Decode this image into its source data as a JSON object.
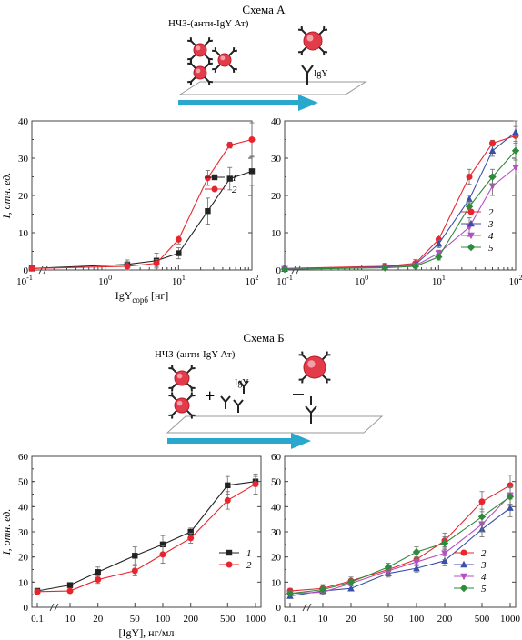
{
  "scheme_a": {
    "title": "Схема А",
    "np_label": "НЧЗ-(анти-IgY Ат)",
    "igy_label": "IgY"
  },
  "scheme_b": {
    "title": "Схема Б",
    "np_label": "НЧЗ-(анти-IgY Ат)",
    "igy_label": "IgY",
    "plus": "+"
  },
  "colors": {
    "1": "#222222",
    "2": "#e8252e",
    "3": "#3b4fa8",
    "4": "#b44fc0",
    "5": "#2e8b3a",
    "arrow": "#2aa7cc",
    "particle": "#e23b4a"
  },
  "chart_data": [
    {
      "id": "a_left",
      "type": "line",
      "xscale": "log",
      "xlim": [
        0.1,
        100
      ],
      "ylim": [
        0,
        40
      ],
      "xticks": [
        "10^0",
        "10^1",
        "10^2"
      ],
      "xtick_extra_left": "10^-1",
      "yticks": [
        "0",
        "10",
        "20",
        "30",
        "40"
      ],
      "ylabel": "I, отн. ед.",
      "xlabel": "IgYсорб [нг]",
      "legend_position": "right-middle",
      "series": [
        {
          "name": "1",
          "x": [
            0.1,
            2,
            5,
            10,
            25,
            50,
            100
          ],
          "y": [
            0.4,
            1.5,
            2.5,
            4.5,
            15.8,
            24.5,
            26.5
          ],
          "err": [
            0.5,
            1.2,
            2.0,
            1.5,
            3.5,
            3.0,
            3.8
          ]
        },
        {
          "name": "2",
          "x": [
            0.1,
            2,
            5,
            10,
            25,
            50,
            100
          ],
          "y": [
            0.4,
            1.0,
            1.8,
            8.2,
            24.7,
            33.5,
            35.0
          ],
          "err": [
            0.5,
            1.0,
            1.0,
            1.2,
            2.0,
            0.8,
            4.5
          ]
        }
      ]
    },
    {
      "id": "a_right",
      "type": "line",
      "xscale": "log",
      "xlim": [
        0.1,
        100
      ],
      "ylim": [
        0,
        40
      ],
      "xticks": [
        "10^-1",
        "10^0",
        "10^1",
        "10^2"
      ],
      "yticks": [
        "0",
        "10",
        "20",
        "30",
        "40"
      ],
      "legend_position": "right-middle",
      "series": [
        {
          "name": "2",
          "x": [
            0.1,
            2,
            5,
            10,
            25,
            50,
            100
          ],
          "y": [
            0.4,
            1.0,
            1.8,
            8.2,
            25.0,
            34.0,
            36.0
          ],
          "err": [
            0.5,
            0.8,
            1.0,
            1.2,
            2.0,
            0.8,
            2.5
          ]
        },
        {
          "name": "3",
          "x": [
            0.1,
            2,
            5,
            10,
            25,
            50,
            100
          ],
          "y": [
            0.3,
            0.8,
            1.5,
            7.0,
            19.0,
            32.0,
            37.0
          ],
          "err": [
            0.4,
            0.6,
            0.8,
            1.0,
            1.0,
            1.5,
            3.0
          ]
        },
        {
          "name": "4",
          "x": [
            0.1,
            2,
            5,
            10,
            25,
            50,
            100
          ],
          "y": [
            0.3,
            0.7,
            1.2,
            4.5,
            11.5,
            22.5,
            27.5
          ],
          "err": [
            0.3,
            0.5,
            0.6,
            0.8,
            2.5,
            2.5,
            2.0
          ]
        },
        {
          "name": "5",
          "x": [
            0.1,
            2,
            5,
            10,
            25,
            50,
            100
          ],
          "y": [
            0.2,
            0.6,
            1.0,
            3.5,
            17.0,
            25.0,
            32.0
          ],
          "err": [
            0.3,
            0.5,
            0.5,
            0.8,
            1.5,
            2.0,
            2.5
          ]
        }
      ]
    },
    {
      "id": "b_left",
      "type": "line",
      "xscale": "log-broken",
      "xlim": [
        0.1,
        1000
      ],
      "ylim": [
        0,
        60
      ],
      "xticks": [
        "0.1",
        "10",
        "20",
        "50",
        "100",
        "200",
        "500",
        "1000"
      ],
      "yticks": [
        "0",
        "10",
        "20",
        "30",
        "40",
        "50",
        "60"
      ],
      "ylabel": "I, отн. ед.",
      "xlabel": "[IgY], нг/мл",
      "legend_position": "right-middle",
      "series": [
        {
          "name": "1",
          "x": [
            0.1,
            10,
            20,
            50,
            100,
            200,
            500,
            1000
          ],
          "y": [
            6.5,
            8.8,
            14.0,
            20.5,
            25.0,
            30.0,
            48.5,
            50.0
          ],
          "err": [
            1.0,
            0.8,
            2.0,
            3.5,
            3.5,
            1.5,
            3.5,
            2.0
          ]
        },
        {
          "name": "2",
          "x": [
            0.1,
            10,
            20,
            50,
            100,
            200,
            500,
            1000
          ],
          "y": [
            6.2,
            6.5,
            11.0,
            14.5,
            21.0,
            27.5,
            42.5,
            49.0
          ],
          "err": [
            0.8,
            0.8,
            1.5,
            2.0,
            3.5,
            2.0,
            3.5,
            4.0
          ]
        }
      ]
    },
    {
      "id": "b_right",
      "type": "line",
      "xscale": "log-broken",
      "xlim": [
        0.1,
        1000
      ],
      "ylim": [
        0,
        60
      ],
      "xticks": [
        "0.1",
        "10",
        "20",
        "50",
        "100",
        "200",
        "500",
        "1000"
      ],
      "yticks": [
        "0",
        "10",
        "20",
        "30",
        "40",
        "50",
        "60"
      ],
      "legend_position": "right-middle",
      "series": [
        {
          "name": "2",
          "x": [
            0.1,
            10,
            20,
            50,
            100,
            200,
            500,
            1000
          ],
          "y": [
            6.5,
            7.5,
            10.5,
            15.0,
            19.0,
            26.5,
            42.0,
            48.5
          ],
          "err": [
            1.0,
            1.5,
            1.5,
            1.5,
            2.0,
            3.0,
            4.0,
            4.0
          ]
        },
        {
          "name": "3",
          "x": [
            0.1,
            10,
            20,
            50,
            100,
            200,
            500,
            1000
          ],
          "y": [
            4.5,
            6.5,
            7.5,
            13.5,
            15.5,
            18.5,
            31.0,
            39.5
          ],
          "err": [
            0.8,
            1.0,
            1.0,
            1.5,
            1.5,
            2.0,
            3.0,
            3.5
          ]
        },
        {
          "name": "4",
          "x": [
            0.1,
            10,
            20,
            50,
            100,
            200,
            500,
            1000
          ],
          "y": [
            5.5,
            6.0,
            9.5,
            14.5,
            18.0,
            21.5,
            33.0,
            44.5
          ],
          "err": [
            0.8,
            1.0,
            1.0,
            1.2,
            1.5,
            2.5,
            3.0,
            3.5
          ]
        },
        {
          "name": "5",
          "x": [
            0.1,
            10,
            20,
            50,
            100,
            200,
            500,
            1000
          ],
          "y": [
            5.5,
            7.0,
            10.0,
            16.0,
            22.0,
            25.5,
            36.0,
            44.0
          ],
          "err": [
            0.8,
            1.0,
            1.2,
            1.5,
            2.0,
            2.5,
            3.0,
            3.5
          ]
        }
      ]
    }
  ]
}
